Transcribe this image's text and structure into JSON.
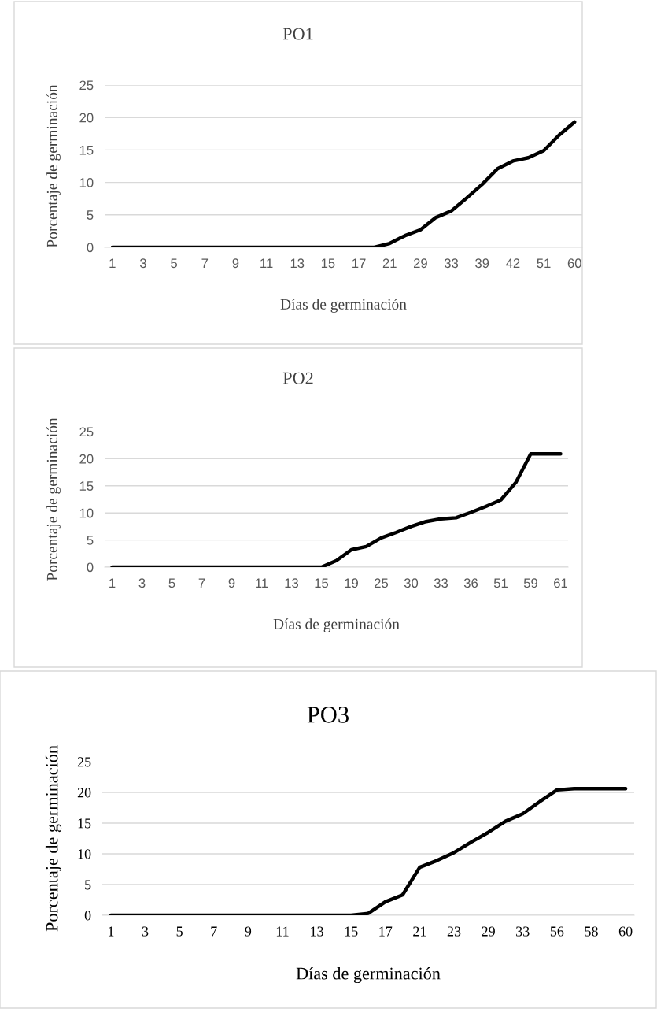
{
  "chart_data": [
    {
      "type": "line",
      "title": "PO1",
      "xlabel": "Días de germinación",
      "ylabel": "Porcentaje de germinación",
      "categories": [
        "1",
        null,
        "3",
        null,
        "5",
        null,
        "7",
        null,
        "9",
        null,
        "11",
        null,
        "13",
        null,
        "15",
        null,
        "17",
        null,
        "21",
        null,
        "29",
        null,
        "33",
        null,
        "39",
        null,
        "42",
        null,
        "51",
        null,
        "60"
      ],
      "series": [
        {
          "color": "#000000",
          "values": [
            0,
            0,
            0,
            0,
            0,
            0,
            0,
            0,
            0,
            0,
            0,
            0,
            0,
            0,
            0,
            0,
            0,
            0,
            0.6,
            1.8,
            2.7,
            4.6,
            5.6,
            7.6,
            9.7,
            12.1,
            13.3,
            13.8,
            14.9,
            17.3,
            19.3
          ]
        }
      ],
      "ylim": [
        0,
        25
      ],
      "yticks": [
        0,
        5,
        10,
        15,
        20,
        25
      ],
      "grid": "y",
      "marker": "none",
      "line_style": "solid"
    },
    {
      "type": "line",
      "title": "PO2",
      "xlabel": "Días de germinación",
      "ylabel": "Porcentaje de germinación",
      "categories": [
        "1",
        null,
        "3",
        null,
        "5",
        null,
        "7",
        null,
        "9",
        null,
        "11",
        null,
        "13",
        null,
        "15",
        null,
        "19",
        null,
        "25",
        null,
        "30",
        null,
        "33",
        null,
        "36",
        null,
        "51",
        null,
        "59",
        null,
        "61"
      ],
      "series": [
        {
          "color": "#000000",
          "values": [
            0,
            0,
            0,
            0,
            0,
            0,
            0,
            0,
            0,
            0,
            0,
            0,
            0,
            0,
            0,
            1.2,
            3.2,
            3.8,
            5.4,
            6.4,
            7.5,
            8.4,
            8.9,
            9.1,
            10.1,
            11.2,
            12.4,
            15.6,
            20.9,
            20.9,
            20.9
          ]
        }
      ],
      "ylim": [
        0,
        25
      ],
      "yticks": [
        0,
        5,
        10,
        15,
        20,
        25
      ],
      "grid": "y",
      "marker": "none",
      "line_style": "solid"
    },
    {
      "type": "line",
      "title": "PO3",
      "xlabel": "Días de germinación",
      "ylabel": "Porcentaje de germinación",
      "categories": [
        "1",
        null,
        "3",
        null,
        "5",
        null,
        "7",
        null,
        "9",
        null,
        "11",
        null,
        "13",
        null,
        "15",
        null,
        "17",
        null,
        "21",
        null,
        "23",
        null,
        "29",
        null,
        "33",
        null,
        "56",
        null,
        "58",
        null,
        "60"
      ],
      "series": [
        {
          "color": "#000000",
          "values": [
            0,
            0,
            0,
            0,
            0,
            0,
            0,
            0,
            0,
            0,
            0,
            0,
            0,
            0,
            0,
            0.3,
            2.2,
            3.3,
            7.8,
            8.9,
            10.2,
            11.9,
            13.5,
            15.3,
            16.5,
            18.5,
            20.4,
            20.6,
            20.6,
            20.6,
            20.6
          ]
        }
      ],
      "ylim": [
        0,
        25
      ],
      "yticks": [
        0,
        5,
        10,
        15,
        20,
        25
      ],
      "grid": "y",
      "marker": "none",
      "line_style": "solid"
    }
  ]
}
